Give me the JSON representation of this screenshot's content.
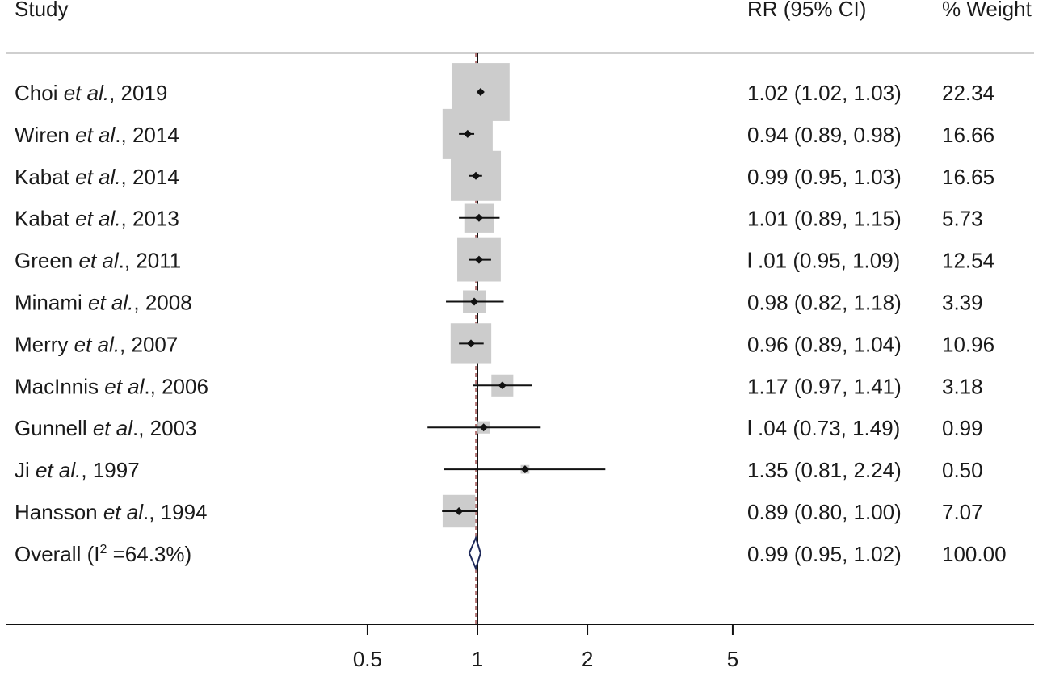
{
  "chart_data": {
    "type": "forest",
    "axis_scale": "log",
    "x_ticks": [
      0.5,
      1,
      2,
      5
    ],
    "x_tick_labels": [
      "0.5",
      "1",
      "2",
      "5"
    ],
    "reference_line": 1,
    "overall_line": 0.99,
    "headers": {
      "study": "Study",
      "estimate": "RR (95% CI)",
      "weight": "% Weight"
    },
    "studies": [
      {
        "author": "Choi",
        "etal": "et al.",
        "sep": ", ",
        "year": "2019",
        "rr": 1.02,
        "lo": 1.02,
        "hi": 1.03,
        "ci_text": "1.02 (1.02, 1.03)",
        "weight": 22.34,
        "weight_text": "22.34"
      },
      {
        "author": "Wiren",
        "etal": "et al",
        "sep": "., ",
        "year": "2014",
        "rr": 0.94,
        "lo": 0.89,
        "hi": 0.98,
        "ci_text": "0.94 (0.89, 0.98)",
        "weight": 16.66,
        "weight_text": "16.66"
      },
      {
        "author": "Kabat",
        "etal": "et al.",
        "sep": ", ",
        "year": "2014",
        "rr": 0.99,
        "lo": 0.95,
        "hi": 1.03,
        "ci_text": "0.99 (0.95, 1.03)",
        "weight": 16.65,
        "weight_text": "16.65"
      },
      {
        "author": "Kabat",
        "etal": "et al.",
        "sep": ", ",
        "year": "2013",
        "rr": 1.01,
        "lo": 0.89,
        "hi": 1.15,
        "ci_text": "1.01 (0.89, 1.15)",
        "weight": 5.73,
        "weight_text": "5.73"
      },
      {
        "author": "Green",
        "etal": "et al",
        "sep": "., ",
        "year": "2011",
        "rr": 1.01,
        "lo": 0.95,
        "hi": 1.09,
        "ci_text": "l .01 (0.95, 1.09)",
        "weight": 12.54,
        "weight_text": "12.54"
      },
      {
        "author": "Minami",
        "etal": "et al.",
        "sep": ", ",
        "year": "2008",
        "rr": 0.98,
        "lo": 0.82,
        "hi": 1.18,
        "ci_text": "0.98 (0.82, 1.18)",
        "weight": 3.39,
        "weight_text": "3.39"
      },
      {
        "author": "Merry",
        "etal": "et al.",
        "sep": ", ",
        "year": "2007",
        "rr": 0.96,
        "lo": 0.89,
        "hi": 1.04,
        "ci_text": "0.96 (0.89, 1.04)",
        "weight": 10.96,
        "weight_text": "10.96"
      },
      {
        "author": "MacInnis",
        "etal": "et al",
        "sep": "., ",
        "year": "2006",
        "rr": 1.17,
        "lo": 0.97,
        "hi": 1.41,
        "ci_text": "1.17 (0.97, 1.41)",
        "weight": 3.18,
        "weight_text": "3.18"
      },
      {
        "author": "Gunnell",
        "etal": "et al",
        "sep": "., ",
        "year": "2003",
        "rr": 1.04,
        "lo": 0.73,
        "hi": 1.49,
        "ci_text": "l .04 (0.73, 1.49)",
        "weight": 0.99,
        "weight_text": "0.99"
      },
      {
        "author": "Ji",
        "etal": "et al.",
        "sep": ", ",
        "year": "1997",
        "rr": 1.35,
        "lo": 0.81,
        "hi": 2.24,
        "ci_text": "1.35 (0.81, 2.24)",
        "weight": 0.5,
        "weight_text": "0.50"
      },
      {
        "author": "Hansson",
        "etal": "et al",
        "sep": "., ",
        "year": "1994",
        "rr": 0.89,
        "lo": 0.8,
        "hi": 1.0,
        "ci_text": "0.89 (0.80, 1.00)",
        "weight": 7.07,
        "weight_text": "7.07"
      }
    ],
    "overall": {
      "label_pre": "Overall (I",
      "label_sup": "2",
      "label_post": " =64.3%)",
      "rr": 0.99,
      "lo": 0.95,
      "hi": 1.02,
      "ci_text": "0.99 (0.95, 1.02)",
      "weight_text": "100.00"
    },
    "colors": {
      "box": "#cccccc",
      "marker": "#111111",
      "ci_line": "#111111",
      "ref_line": "#111111",
      "overall_line": "#a05050",
      "diamond": "#1f2a5a",
      "rule": "#cfcfcf"
    }
  }
}
